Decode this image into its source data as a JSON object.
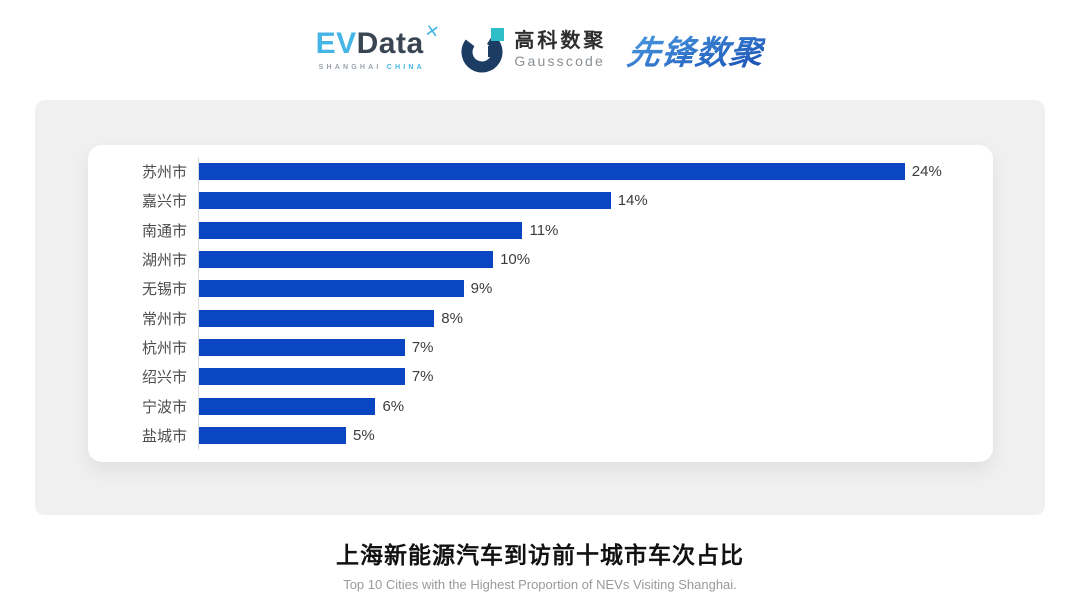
{
  "header": {
    "evdata": {
      "ev": "EV",
      "data": "Data",
      "sub_left": "SHANGHAI",
      "sub_right": "CHINA"
    },
    "gausscode": {
      "cn": "高科数聚",
      "en": "Gausscode"
    },
    "xianfeng": {
      "text": "先锋数聚"
    }
  },
  "icons": {
    "pinwheel": "✕"
  },
  "chart_data": {
    "type": "bar",
    "orientation": "horizontal",
    "categories": [
      "苏州市",
      "嘉兴市",
      "南通市",
      "湖州市",
      "无锡市",
      "常州市",
      "杭州市",
      "绍兴市",
      "宁波市",
      "盐城市"
    ],
    "values": [
      24,
      14,
      11,
      10,
      9,
      8,
      7,
      7,
      6,
      5
    ],
    "value_labels": [
      "24%",
      "14%",
      "11%",
      "10%",
      "9%",
      "8%",
      "7%",
      "7%",
      "6%",
      "5%"
    ],
    "title": "上海新能源汽车到访前十城市车次占比",
    "subtitle": "Top 10 Cities with the Highest Proportion of NEVs Visiting Shanghai.",
    "xlabel": "",
    "ylabel": "",
    "xlim": [
      0,
      27
    ],
    "grid": false,
    "legend": false,
    "bar_color": "#0b46c2",
    "axis_line_color": "#dcdcdc",
    "label_color": "#4d4d4d",
    "value_color": "#3c3c3c"
  },
  "colors": {
    "panel_bg": "#f0f0f1",
    "card_bg": "#ffffff",
    "accent_light_blue": "#45b5e6",
    "accent_dark_slate": "#3a4553",
    "gausscode_navy": "#1d3c64",
    "gausscode_teal": "#2ebec8",
    "xianfeng_blue": "#2a73d2"
  }
}
